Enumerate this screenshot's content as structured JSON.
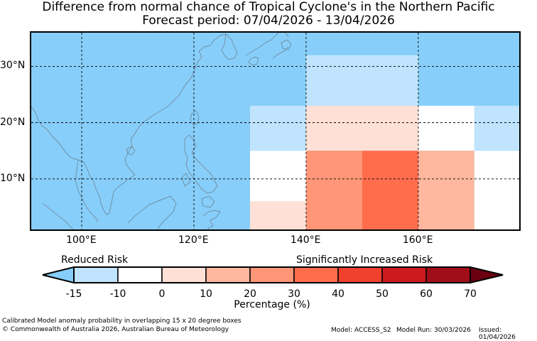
{
  "title": {
    "line1": "Difference from normal chance of Tropical Cyclone's in the Northern Pacific",
    "line2": "Forecast period: 07/04/2026 - 13/04/2026"
  },
  "map": {
    "lon_range": [
      91,
      178
    ],
    "lat_range": [
      1,
      36
    ],
    "lat_ticks": [
      {
        "value": 30,
        "label": "30°N"
      },
      {
        "value": 20,
        "label": "20°N"
      },
      {
        "value": 10,
        "label": "10°N"
      }
    ],
    "lon_ticks": [
      {
        "value": 100,
        "label": "100°E"
      },
      {
        "value": 120,
        "label": "120°E"
      },
      {
        "value": 140,
        "label": "140°E"
      },
      {
        "value": 160,
        "label": "160°E"
      }
    ],
    "background_color": "#87cefa",
    "cells": [
      {
        "lon0": 140,
        "lon1": 160,
        "lat0": 23,
        "lat1": 32,
        "color": "#c0e4fd"
      },
      {
        "lon0": 130,
        "lon1": 140,
        "lat0": 15,
        "lat1": 23,
        "color": "#c0e4fd"
      },
      {
        "lon0": 140,
        "lon1": 160,
        "lat0": 15,
        "lat1": 23,
        "color": "#ffe0d6"
      },
      {
        "lon0": 160,
        "lon1": 170,
        "lat0": 15,
        "lat1": 23,
        "color": "#ffffff"
      },
      {
        "lon0": 170,
        "lon1": 178,
        "lat0": 15,
        "lat1": 23,
        "color": "#c0e4fd"
      },
      {
        "lon0": 130,
        "lon1": 140,
        "lat0": 6,
        "lat1": 15,
        "color": "#ffffff"
      },
      {
        "lon0": 140,
        "lon1": 150,
        "lat0": 1,
        "lat1": 15,
        "color": "#ff9677"
      },
      {
        "lon0": 150,
        "lon1": 160,
        "lat0": 1,
        "lat1": 15,
        "color": "#ff6d4c"
      },
      {
        "lon0": 160,
        "lon1": 170,
        "lat0": 1,
        "lat1": 15,
        "color": "#ffb79f"
      },
      {
        "lon0": 170,
        "lon1": 178,
        "lat0": 1,
        "lat1": 15,
        "color": "#ffffff"
      },
      {
        "lon0": 130,
        "lon1": 140,
        "lat0": 1,
        "lat1": 6,
        "color": "#ffe0d6"
      }
    ]
  },
  "colorbar": {
    "reduced_label": "Reduced Risk",
    "increased_label": "Significantly Increased Risk",
    "label": "Percentage (%)",
    "ticks": [
      "-15",
      "-10",
      "0",
      "10",
      "20",
      "30",
      "40",
      "50",
      "60",
      "70"
    ],
    "low_extend_color": "#87cefa",
    "high_extend_color": "#6b0010",
    "colors": [
      "#c0e4fd",
      "#ffffff",
      "#ffe0d6",
      "#ffb79f",
      "#ff9677",
      "#ff6d4c",
      "#f0402e",
      "#cc1a1f",
      "#a00f18"
    ]
  },
  "footer": {
    "note": "Calibrated Model anomaly probability in overlapping 15 x 20 degree boxes",
    "copyright": "© Commonwealth of Australia 2026, Australian Bureau of Meteorology",
    "model": "Model: ACCESS_S2",
    "run": "Model Run: 30/03/2026",
    "issued": "Issued: 01/04/2026"
  }
}
